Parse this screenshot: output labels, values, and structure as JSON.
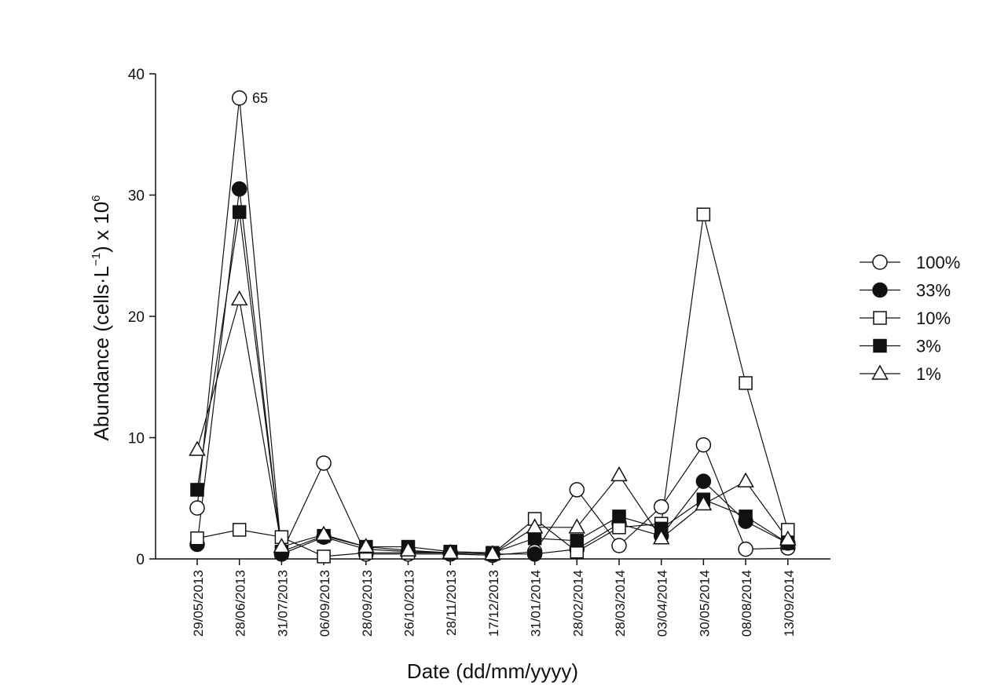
{
  "chart_data": {
    "type": "line",
    "title": "",
    "xlabel": "Date (dd/mm/yyyy)",
    "ylabel_main": "Abundance (cells·L",
    "ylabel_exp1": "−1",
    "ylabel_mid": ") x 10",
    "ylabel_exp2": "6",
    "ylim": [
      0,
      40
    ],
    "yticks": [
      "0",
      "10",
      "20",
      "30",
      "40"
    ],
    "categories": [
      "29/05/2013",
      "28/06/2013",
      "31/07/2013",
      "06/09/2013",
      "28/09/2013",
      "26/10/2013",
      "28/11/2013",
      "17/12/2013",
      "31/01/2014",
      "28/02/2014",
      "28/03/2014",
      "03/04/2014",
      "30/05/2014",
      "08/08/2014",
      "13/09/2014"
    ],
    "grid": false,
    "legend_position": "right",
    "annotation": "65",
    "series": [
      {
        "name": "100%",
        "marker": "open-circle",
        "values": [
          4.2,
          38,
          0.5,
          7.9,
          0.4,
          0.4,
          0.4,
          0.3,
          0.6,
          5.7,
          1.1,
          4.3,
          9.4,
          0.8,
          0.9
        ]
      },
      {
        "name": "33%",
        "marker": "filled-circle",
        "values": [
          1.2,
          30.5,
          0.4,
          1.8,
          0.8,
          0.6,
          0.5,
          0.4,
          0.4,
          0.8,
          2.9,
          1.9,
          6.4,
          3.1,
          1.3
        ]
      },
      {
        "name": "10%",
        "marker": "open-square",
        "values": [
          1.7,
          2.4,
          1.8,
          0.2,
          0.5,
          0.5,
          0.5,
          0.4,
          3.3,
          0.6,
          2.6,
          2.9,
          28.4,
          14.5,
          2.4
        ]
      },
      {
        "name": "3%",
        "marker": "filled-square",
        "values": [
          5.7,
          28.6,
          0.6,
          1.9,
          1.0,
          1.0,
          0.6,
          0.5,
          1.7,
          1.5,
          3.5,
          2.5,
          4.9,
          3.5,
          1.3
        ]
      },
      {
        "name": "1%",
        "marker": "open-triangle",
        "values": [
          9.0,
          21.4,
          1.0,
          2.0,
          1.0,
          0.7,
          0.5,
          0.4,
          2.6,
          2.6,
          6.9,
          1.7,
          4.5,
          6.4,
          1.6
        ]
      }
    ]
  }
}
